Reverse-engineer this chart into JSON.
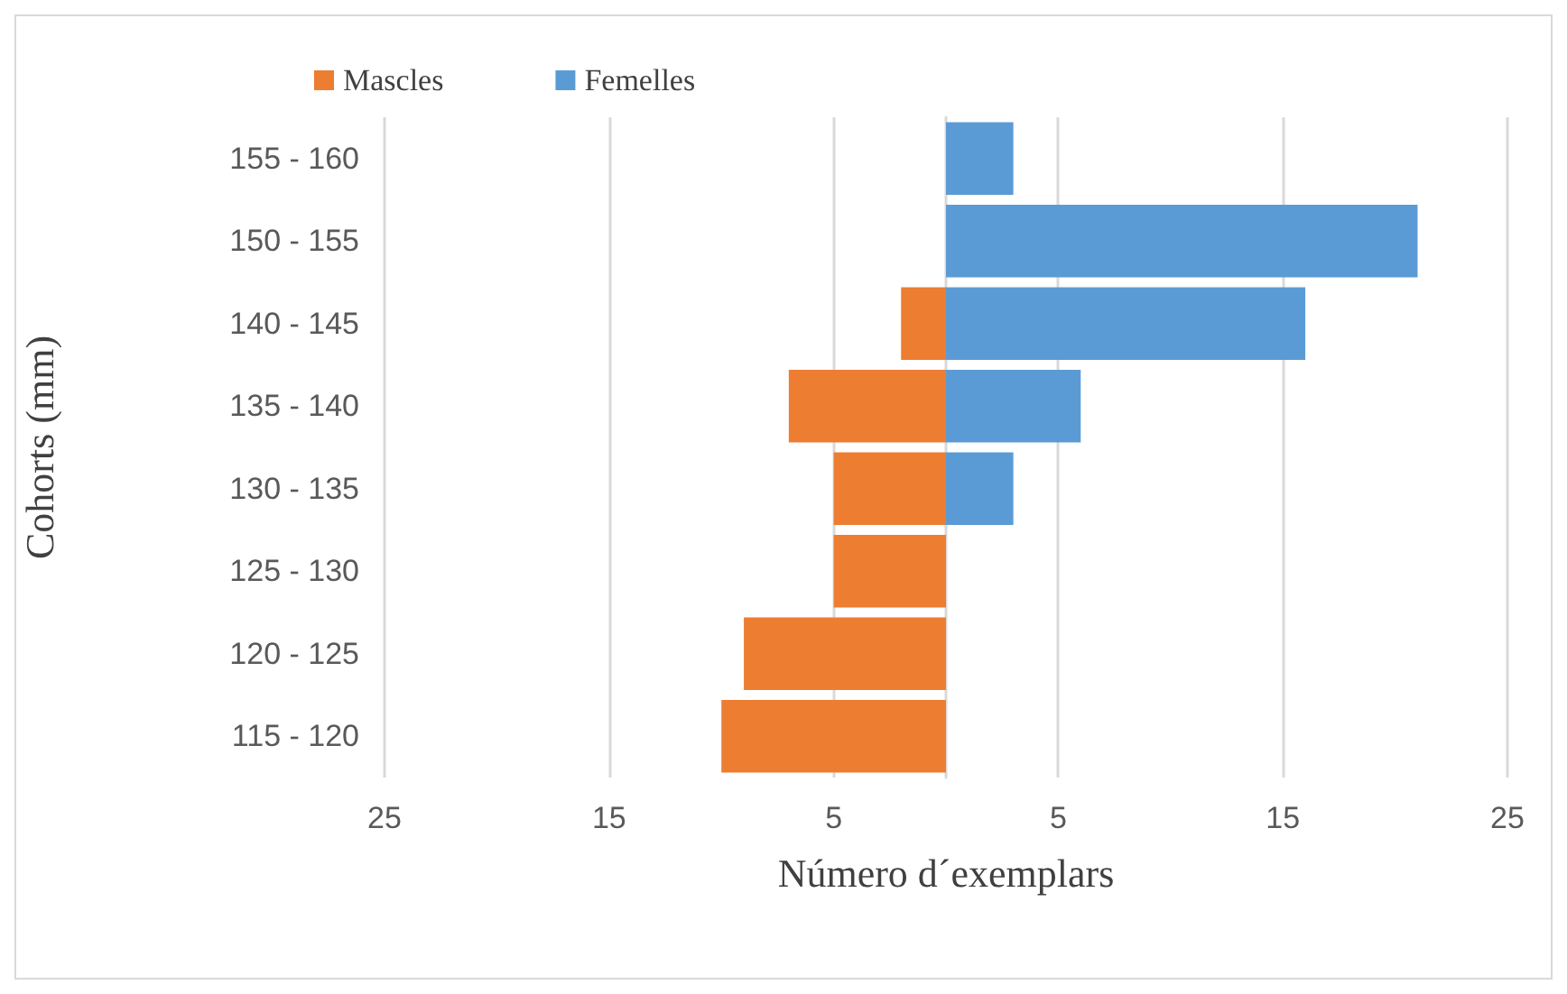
{
  "chart_data": {
    "type": "bar",
    "orientation": "horizontal",
    "stacked": true,
    "xlabel": "Número d´exemplars",
    "ylabel": "Cohorts (mm)",
    "categories": [
      "155 - 160",
      "150 - 155",
      "140 - 145",
      "135 - 140",
      "130 - 135",
      "125 - 130",
      "120 - 125",
      "115 - 120"
    ],
    "series": [
      {
        "name": "Mascles",
        "color": "#ed7d31",
        "values": [
          0,
          0,
          -2,
          -7,
          -5,
          -5,
          -9,
          -10
        ]
      },
      {
        "name": "Femelles",
        "color": "#5b9bd5",
        "values": [
          3,
          21,
          16,
          6,
          3,
          0,
          0,
          0
        ]
      }
    ],
    "xlim": [
      -25,
      25
    ],
    "xticks": [
      {
        "value": -25,
        "label": "25"
      },
      {
        "value": -15,
        "label": "15"
      },
      {
        "value": -5,
        "label": "5"
      },
      5,
      15,
      25
    ],
    "grid": "x",
    "legend": "top"
  }
}
